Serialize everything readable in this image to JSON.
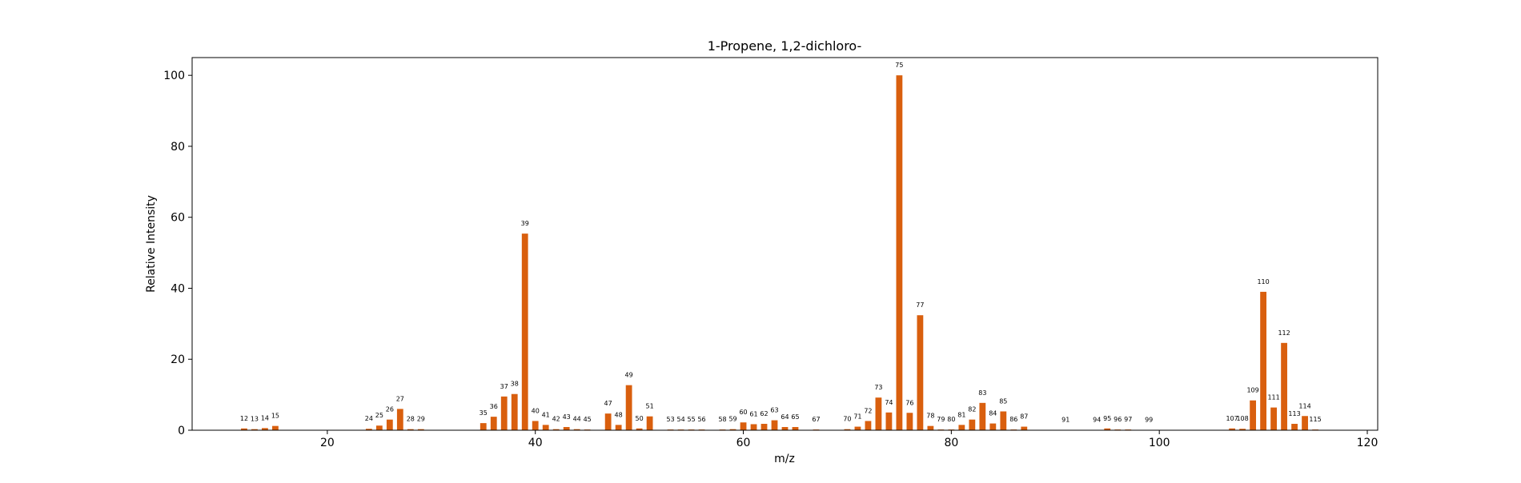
{
  "chart_data": {
    "type": "bar",
    "title": "1-Propene, 1,2-dichloro-",
    "xlabel": "m/z",
    "ylabel": "Relative Intensity",
    "xlim": [
      7,
      121
    ],
    "ylim": [
      0,
      105
    ],
    "xticks": [
      20,
      40,
      60,
      80,
      100,
      120
    ],
    "yticks": [
      0,
      20,
      40,
      60,
      80,
      100
    ],
    "grid": false,
    "bar_color": "#d95f0e",
    "x": [
      12,
      13,
      14,
      15,
      24,
      25,
      26,
      27,
      28,
      29,
      35,
      36,
      37,
      38,
      39,
      40,
      41,
      42,
      43,
      44,
      45,
      47,
      48,
      49,
      50,
      51,
      53,
      54,
      55,
      56,
      58,
      59,
      60,
      61,
      62,
      63,
      64,
      65,
      67,
      70,
      71,
      72,
      73,
      74,
      75,
      76,
      77,
      78,
      79,
      80,
      81,
      82,
      83,
      84,
      85,
      86,
      87,
      91,
      94,
      95,
      96,
      97,
      99,
      107,
      108,
      109,
      110,
      111,
      112,
      113,
      114,
      115
    ],
    "values": [
      0.5,
      0.3,
      0.6,
      1.2,
      0.4,
      1.3,
      3.0,
      6.0,
      0.3,
      0.3,
      2.0,
      3.8,
      9.5,
      10.2,
      55.4,
      2.6,
      1.5,
      0.3,
      0.9,
      0.3,
      0.2,
      4.7,
      1.5,
      12.7,
      0.5,
      3.9,
      0.2,
      0.2,
      0.2,
      0.2,
      0.2,
      0.3,
      2.2,
      1.7,
      1.8,
      2.8,
      0.9,
      0.9,
      0.2,
      0.3,
      1.0,
      2.6,
      9.2,
      5.0,
      100.0,
      4.9,
      32.4,
      1.2,
      0.2,
      0.2,
      1.5,
      3.0,
      7.7,
      1.9,
      5.3,
      0.2,
      1.0,
      0.1,
      0.1,
      0.5,
      0.2,
      0.2,
      0.1,
      0.5,
      0.4,
      8.4,
      39.0,
      6.4,
      24.6,
      1.8,
      4.0,
      0.2
    ],
    "labels": [
      "12",
      "13",
      "14",
      "15",
      "24",
      "25",
      "26",
      "27",
      "28",
      "29",
      "35",
      "36",
      "37",
      "38",
      "39",
      "40",
      "41",
      "42",
      "43",
      "44",
      "45",
      "47",
      "48",
      "49",
      "50",
      "51",
      "53",
      "54",
      "55",
      "56",
      "58",
      "59",
      "60",
      "61",
      "62",
      "63",
      "64",
      "65",
      "67",
      "70",
      "71",
      "72",
      "73",
      "74",
      "75",
      "76",
      "77",
      "78",
      "79",
      "80",
      "81",
      "82",
      "83",
      "84",
      "85",
      "86",
      "87",
      "91",
      "94",
      "95",
      "96",
      "97",
      "99",
      "107",
      "108",
      "109",
      "110",
      "111",
      "112",
      "113",
      "114",
      "115"
    ]
  }
}
